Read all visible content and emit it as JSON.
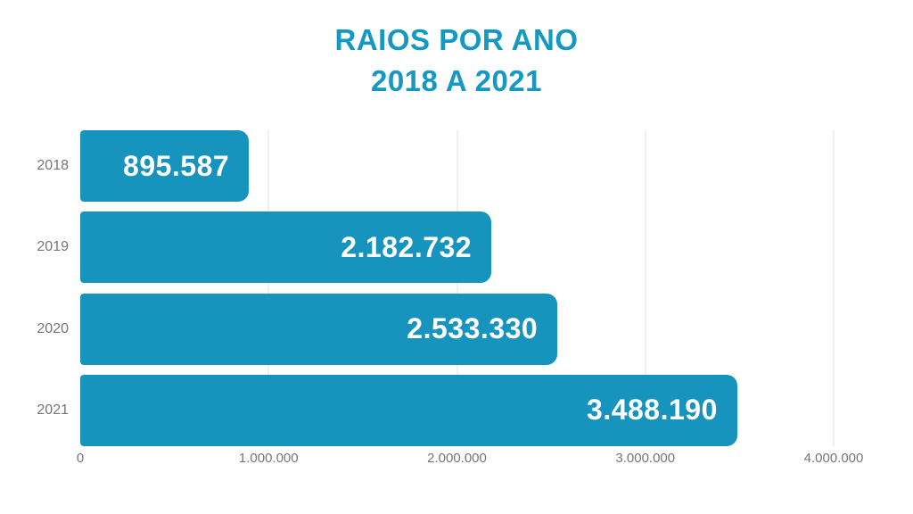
{
  "page": {
    "background": "#ffffff"
  },
  "chart_data": {
    "type": "bar",
    "orientation": "horizontal",
    "title": "RAIOS POR ANO 2018 A 2021",
    "title_lines": [
      "RAIOS POR ANO",
      "2018 A 2021"
    ],
    "categories": [
      "2018",
      "2019",
      "2020",
      "2021"
    ],
    "values": [
      895587,
      2182732,
      2533330,
      3488190
    ],
    "value_labels": [
      "895.587",
      "2.182.732",
      "2.533.330",
      "3.488.190"
    ],
    "xlabel": "",
    "ylabel": "",
    "xlim": [
      0,
      4000000
    ],
    "x_ticks": [
      0,
      1000000,
      2000000,
      3000000,
      4000000
    ],
    "x_tick_labels": [
      "0",
      "1.000.000",
      "2.000.000",
      "3.000.000",
      "4.000.000"
    ],
    "legend": "none",
    "grid": "vertical-light",
    "value_label_position": "inside-end",
    "colors": {
      "background": "#ffffff",
      "bar": "#1794be",
      "title": "#1598c2",
      "axis_label": "#757575",
      "gridline": "#f0f0f0",
      "value_label": "#ffffff"
    }
  }
}
